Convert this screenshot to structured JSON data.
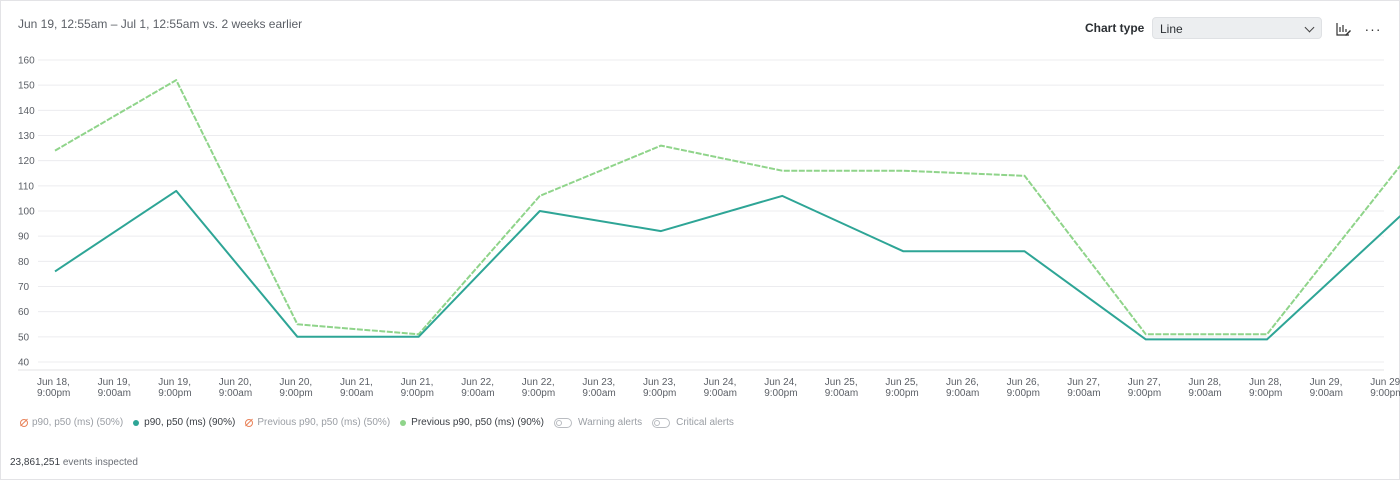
{
  "header": {
    "title": "Jun 19, 12:55am – Jul 1, 12:55am vs. 2 weeks earlier",
    "chart_type_label": "Chart type",
    "chart_type_value": "Line"
  },
  "icons": {
    "chart_settings": "chart-edit-icon",
    "more": "more-icon"
  },
  "more_glyph": "···",
  "chart_data": {
    "type": "line",
    "yticks": [
      40,
      50,
      60,
      70,
      80,
      90,
      100,
      110,
      120,
      130,
      140,
      150,
      160
    ],
    "ylim": [
      40,
      160
    ],
    "xlabels": [
      [
        "Jun 18,",
        "9:00pm"
      ],
      [
        "Jun 19,",
        "9:00am"
      ],
      [
        "Jun 19,",
        "9:00pm"
      ],
      [
        "Jun 20,",
        "9:00am"
      ],
      [
        "Jun 20,",
        "9:00pm"
      ],
      [
        "Jun 21,",
        "9:00am"
      ],
      [
        "Jun 21,",
        "9:00pm"
      ],
      [
        "Jun 22,",
        "9:00am"
      ],
      [
        "Jun 22,",
        "9:00pm"
      ],
      [
        "Jun 23,",
        "9:00am"
      ],
      [
        "Jun 23,",
        "9:00pm"
      ],
      [
        "Jun 24,",
        "9:00am"
      ],
      [
        "Jun 24,",
        "9:00pm"
      ],
      [
        "Jun 25,",
        "9:00am"
      ],
      [
        "Jun 25,",
        "9:00pm"
      ],
      [
        "Jun 26,",
        "9:00am"
      ],
      [
        "Jun 26,",
        "9:00pm"
      ],
      [
        "Jun 27,",
        "9:00am"
      ],
      [
        "Jun 27,",
        "9:00pm"
      ],
      [
        "Jun 28,",
        "9:00am"
      ],
      [
        "Jun 28,",
        "9:00pm"
      ],
      [
        "Jun 29,",
        "9:00am"
      ],
      [
        "Jun 29,",
        "9:00pm"
      ]
    ],
    "grid": true,
    "series": [
      {
        "name": "Previous p90, p50 (ms) (90%)",
        "color": "#8fd48a",
        "dashed": true,
        "points": [
          [
            0,
            124
          ],
          [
            2,
            152
          ],
          [
            4,
            55
          ],
          [
            6,
            51
          ],
          [
            8,
            106
          ],
          [
            10,
            126
          ],
          [
            12,
            116
          ],
          [
            14,
            116
          ],
          [
            16,
            114
          ],
          [
            18,
            51
          ],
          [
            20,
            51
          ],
          [
            22.2,
            118
          ]
        ]
      },
      {
        "name": "p90, p50 (ms) (90%)",
        "color": "#2ea596",
        "dashed": false,
        "points": [
          [
            0,
            76
          ],
          [
            2,
            108
          ],
          [
            4,
            50
          ],
          [
            6,
            50
          ],
          [
            8,
            100
          ],
          [
            10,
            92
          ],
          [
            12,
            106
          ],
          [
            14,
            84
          ],
          [
            16,
            84
          ],
          [
            18,
            49
          ],
          [
            20,
            49
          ],
          [
            22.2,
            98
          ]
        ]
      }
    ]
  },
  "legend": {
    "p50_current": "p90, p50 (ms) (50%)",
    "p90_current": "p90, p50 (ms) (90%)",
    "p50_previous": "Previous p90, p50 (ms) (50%)",
    "p90_previous": "Previous p90, p50 (ms) (90%)",
    "warning": "Warning alerts",
    "critical": "Critical alerts",
    "colors": {
      "current": "#2ea596",
      "previous": "#8fd48a",
      "disabled": "#e8835a"
    }
  },
  "footer": {
    "count": "23,861,251",
    "text": " events inspected"
  }
}
